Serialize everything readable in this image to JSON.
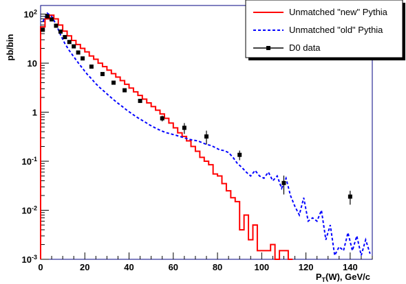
{
  "chart_data": {
    "type": "line",
    "title": "",
    "xlabel_main": "P",
    "xlabel_sub": "T",
    "xlabel_rest": "(W), GeV/c",
    "ylabel": "pb/bin",
    "xlim": [
      0,
      150
    ],
    "ylim": [
      0.001,
      150
    ],
    "yscale": "log",
    "grid": false,
    "legend_position": "top-right",
    "x_ticks": [
      "0",
      "20",
      "40",
      "60",
      "80",
      "100",
      "120",
      "140"
    ],
    "x_tick_values": [
      0,
      20,
      40,
      60,
      80,
      100,
      120,
      140
    ],
    "y_ticks": [
      {
        "base": "10",
        "exp": "2",
        "value": 100
      },
      {
        "base": "10",
        "exp": "",
        "value": 10
      },
      {
        "base": "1",
        "exp": "",
        "value": 1
      },
      {
        "base": "10",
        "exp": "-1",
        "value": 0.1
      },
      {
        "base": "10",
        "exp": "-2",
        "value": 0.01
      },
      {
        "base": "10",
        "exp": "-3",
        "value": 0.001
      }
    ],
    "series": [
      {
        "name": "Unmatched \"new\" Pythia",
        "style": "step",
        "color": "#ff0000",
        "bin_width": 2,
        "x_start": 0,
        "values": [
          55,
          80,
          95,
          80,
          60,
          45,
          36,
          29,
          24,
          20,
          17,
          14,
          12,
          10,
          8.5,
          7.2,
          6.1,
          5.2,
          4.4,
          3.7,
          3.1,
          2.6,
          2.2,
          1.85,
          1.55,
          1.3,
          1.1,
          0.92,
          0.75,
          0.6,
          0.48,
          0.38,
          0.32,
          0.26,
          0.2,
          0.16,
          0.12,
          0.1,
          0.085,
          0.055,
          0.05,
          0.035,
          0.025,
          0.018,
          0.015,
          0.004,
          0.008,
          0.0025,
          0.005,
          0.0015,
          0.0015,
          0.0015,
          0.002,
          0.001,
          0.0015,
          0.0015,
          0.001
        ]
      },
      {
        "name": "Unmatched \"old\" Pythia",
        "style": "dashed",
        "color": "#0000ff",
        "x": [
          1,
          3,
          5,
          7,
          9,
          11,
          13,
          15,
          17,
          19,
          21,
          23,
          25,
          27,
          29,
          31,
          33,
          35,
          37,
          39,
          41,
          43,
          45,
          47,
          49,
          51,
          53,
          55,
          57,
          59,
          61,
          63,
          65,
          67,
          69,
          71,
          73,
          75,
          77,
          79,
          81,
          83,
          85,
          87,
          89,
          91,
          93,
          95,
          97,
          99,
          101,
          103,
          105,
          107,
          109,
          111,
          113,
          115,
          117,
          119,
          121,
          123,
          125,
          127,
          129,
          131,
          133,
          135,
          137,
          139,
          141,
          143,
          145,
          147,
          149
        ],
        "values": [
          70,
          105,
          90,
          62,
          38,
          25,
          18,
          13.5,
          10.2,
          7.8,
          6.0,
          4.8,
          3.8,
          3.1,
          2.6,
          2.15,
          1.8,
          1.52,
          1.3,
          1.1,
          0.95,
          0.82,
          0.72,
          0.64,
          0.56,
          0.5,
          0.45,
          0.41,
          0.38,
          0.36,
          0.34,
          0.32,
          0.3,
          0.28,
          0.27,
          0.26,
          0.24,
          0.22,
          0.21,
          0.19,
          0.17,
          0.165,
          0.15,
          0.12,
          0.09,
          0.075,
          0.06,
          0.05,
          0.065,
          0.05,
          0.045,
          0.06,
          0.04,
          0.05,
          0.028,
          0.045,
          0.02,
          0.012,
          0.008,
          0.018,
          0.006,
          0.007,
          0.006,
          0.01,
          0.0025,
          0.005,
          0.0012,
          0.0018,
          0.0015,
          0.0035,
          0.0015,
          0.003,
          0.0012,
          0.0025,
          0.0013
        ]
      },
      {
        "name": "D0 data",
        "style": "markers",
        "color": "#000000",
        "points": [
          {
            "x": 1,
            "y": 48,
            "err": 0
          },
          {
            "x": 3,
            "y": 90,
            "err": 0
          },
          {
            "x": 5,
            "y": 78,
            "err": 0
          },
          {
            "x": 7,
            "y": 58,
            "err": 0
          },
          {
            "x": 9,
            "y": 44,
            "err": 0
          },
          {
            "x": 11,
            "y": 34,
            "err": 0
          },
          {
            "x": 13,
            "y": 27,
            "err": 0
          },
          {
            "x": 15,
            "y": 22,
            "err": 0
          },
          {
            "x": 17,
            "y": 16.5,
            "err": 0
          },
          {
            "x": 19,
            "y": 12.5,
            "err": 0
          },
          {
            "x": 23,
            "y": 8.5,
            "err": 0
          },
          {
            "x": 28,
            "y": 6.0,
            "err": 0
          },
          {
            "x": 33,
            "y": 4.0,
            "err": 0
          },
          {
            "x": 38,
            "y": 2.8,
            "err": 0
          },
          {
            "x": 45,
            "y": 1.7,
            "err": 0
          },
          {
            "x": 55,
            "y": 0.75,
            "err": 0.1
          },
          {
            "x": 65,
            "y": 0.48,
            "err": 0.12
          },
          {
            "x": 75,
            "y": 0.32,
            "err": 0.1
          },
          {
            "x": 90,
            "y": 0.135,
            "err": 0.03
          },
          {
            "x": 110,
            "y": 0.036,
            "err": 0.015
          },
          {
            "x": 140,
            "y": 0.019,
            "err": 0.006
          }
        ]
      }
    ]
  }
}
